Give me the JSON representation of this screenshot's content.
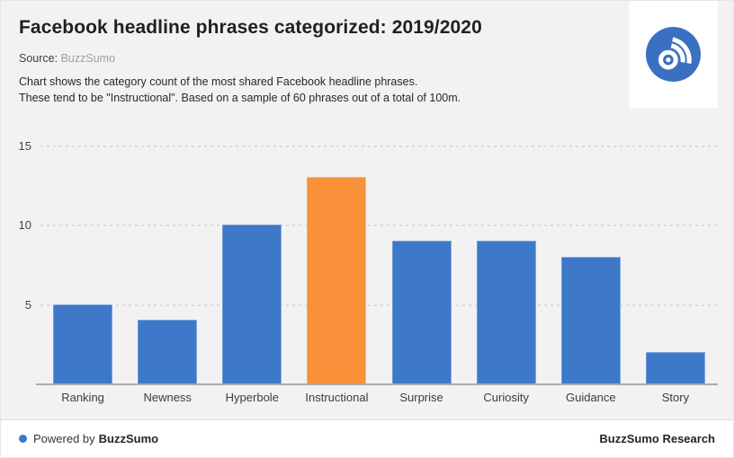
{
  "header": {
    "title": "Facebook headline phrases categorized: 2019/2020",
    "source_label": "Source:",
    "source_value": "BuzzSumo",
    "description_line1": "Chart shows the category count of the most shared Facebook headline phrases.",
    "description_line2": "These tend to be \"Instructional\". Based on a sample of 60 phrases out of a total of 100m."
  },
  "logo": {
    "name": "buzzsumo-logo",
    "circle_color": "#3a70c1",
    "glyph_color": "#ffffff"
  },
  "chart_data": {
    "type": "bar",
    "title": "Facebook headline phrases categorized: 2019/2020",
    "categories": [
      "Ranking",
      "Newness",
      "Hyperbole",
      "Instructional",
      "Surprise",
      "Curiosity",
      "Guidance",
      "Story"
    ],
    "values": [
      5,
      4,
      10,
      13,
      9,
      9,
      8,
      2
    ],
    "xlabel": "",
    "ylabel": "",
    "yticks": [
      5,
      10,
      15
    ],
    "ylim": [
      0,
      15.7
    ],
    "grid": "horizontal-dotted",
    "legend": "none",
    "bar_color": "#3d78c9",
    "highlight_index": 3,
    "highlight_color": "#f8913a",
    "background_color": "#f2f2f3"
  },
  "footer": {
    "dot_color": "#3d78c9",
    "powered_by_prefix": "Powered by",
    "powered_by_brand": "BuzzSumo",
    "right_text": "BuzzSumo Research"
  }
}
